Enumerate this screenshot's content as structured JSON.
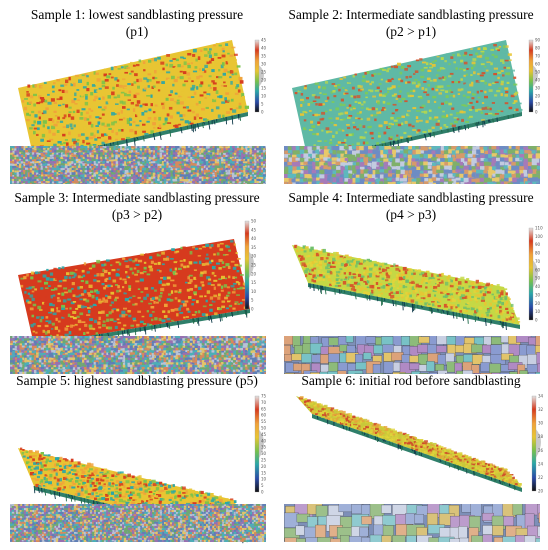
{
  "panels": [
    {
      "title_line1": "Sample 1: lowest sandblasting pressure",
      "title_line2": "(p1)",
      "scale_ticks": [
        "45",
        "40",
        "35",
        "30",
        "25",
        "20",
        "15",
        "10",
        "5",
        "0"
      ],
      "surface_palette": [
        "#d63a1e",
        "#f0a23a",
        "#e8c533",
        "#79c24a",
        "#2aa7a8"
      ],
      "micro_palette": [
        "#5f7fb6",
        "#e2c46a",
        "#6fa96f",
        "#9a6fb0",
        "#d88a5a",
        "#4bb0b7",
        "#b8c3d6"
      ]
    },
    {
      "title_line1": "Sample 2: Intermediate sandblasting pressure",
      "title_line2": "(p2 > p1)",
      "scale_ticks": [
        "90",
        "80",
        "70",
        "60",
        "50",
        "40",
        "30",
        "20",
        "10",
        "0"
      ],
      "surface_palette": [
        "#7fcb55",
        "#b9d84a",
        "#5fb9a5",
        "#e8c533",
        "#d6512a"
      ],
      "micro_palette": [
        "#6d8cc4",
        "#e8c86a",
        "#7fb06a",
        "#a67ab8",
        "#d69a6a",
        "#5db9bd",
        "#c2cbe0"
      ]
    },
    {
      "title_line1": "Sample 3: Intermediate sandblasting pressure",
      "title_line2": "(p3 > p2)",
      "scale_ticks": [
        "50",
        "45",
        "40",
        "35",
        "30",
        "25",
        "20",
        "15",
        "10",
        "5",
        "0"
      ],
      "surface_palette": [
        "#e8c533",
        "#79c24a",
        "#d63a1e",
        "#2aa7a8",
        "#f0a23a"
      ],
      "micro_palette": [
        "#5f7fb6",
        "#e2c46a",
        "#6fa96f",
        "#9a6fb0",
        "#d88a5a",
        "#4bb0b7",
        "#b8c3d6"
      ]
    },
    {
      "title_line1": "Sample 4: Intermediate sandblasting pressure",
      "title_line2": "(p4 > p3)",
      "scale_ticks": [
        "110",
        "100",
        "90",
        "80",
        "70",
        "60",
        "50",
        "40",
        "30",
        "20",
        "10",
        "0"
      ],
      "surface_palette": [
        "#e5d23a",
        "#e8c533",
        "#c5d845",
        "#d6512a",
        "#6fbf6a"
      ],
      "micro_palette": [
        "#8a9bd0",
        "#e2c46a",
        "#8dbb7a",
        "#b08ac4",
        "#dca27a",
        "#78c2c6",
        "#c8cfe2"
      ]
    },
    {
      "title_line1": "Sample 5: highest sandblasting pressure (p5)",
      "title_line2": "",
      "scale_ticks": [
        "75",
        "70",
        "65",
        "60",
        "55",
        "50",
        "45",
        "40",
        "35",
        "30",
        "25",
        "20",
        "15",
        "10",
        "5",
        "0"
      ],
      "surface_palette": [
        "#d63a1e",
        "#f0a23a",
        "#e8c533",
        "#79c24a",
        "#2aa7a8"
      ],
      "micro_palette": [
        "#5f7fb6",
        "#e2c46a",
        "#6fa96f",
        "#9a6fb0",
        "#d88a5a",
        "#4bb0b7",
        "#b8c3d6"
      ]
    },
    {
      "title_line1": "Sample 6: initial rod before sandblasting",
      "title_line2": "",
      "scale_ticks": [
        "34",
        "32",
        "30",
        "28",
        "26",
        "24",
        "22",
        "20"
      ],
      "surface_palette": [
        "#e2d53a",
        "#d9cf3a",
        "#c9c83a",
        "#e5a33a",
        "#cf4a2a"
      ],
      "micro_palette": [
        "#9fb0d8",
        "#d9c27a",
        "#9cc08a",
        "#bc9ccc",
        "#e0b08a",
        "#8fcad0",
        "#cfd6e6"
      ]
    }
  ]
}
